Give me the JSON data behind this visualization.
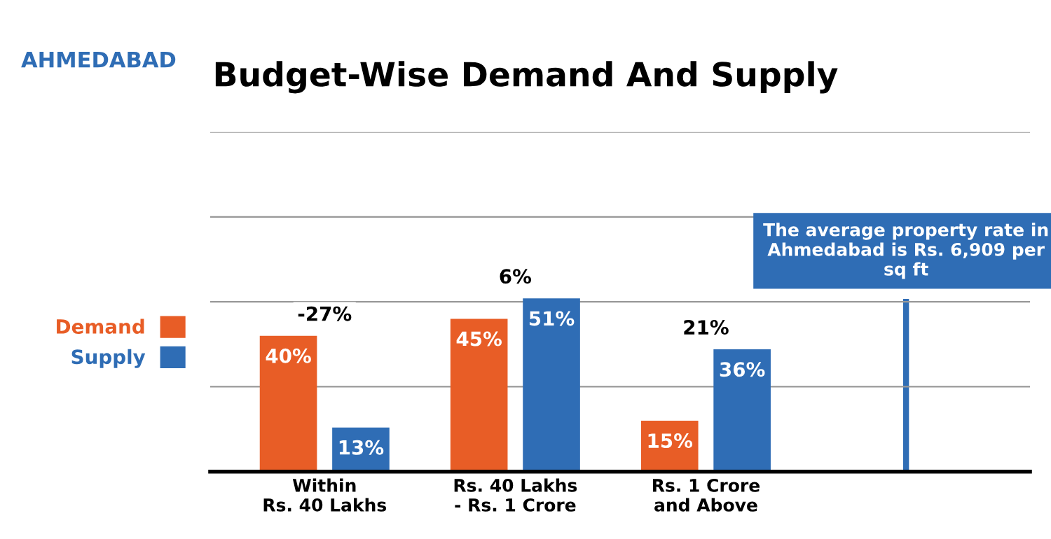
{
  "chart_data": {
    "type": "bar",
    "title": "Budget-Wise Demand And Supply",
    "subtitle": "AHMEDABAD",
    "categories": [
      "Within\nRs. 40 Lakhs",
      "Rs. 40 Lakhs\n- Rs. 1 Crore",
      "Rs. 1 Crore\nand Above"
    ],
    "series": [
      {
        "name": "Demand",
        "color": "#e85d26",
        "values": [
          40,
          45,
          15
        ],
        "value_labels": [
          "40%",
          "45%",
          "15%"
        ]
      },
      {
        "name": "Supply",
        "color": "#2f6db5",
        "values": [
          13,
          51,
          36
        ],
        "value_labels": [
          "13%",
          "51%",
          "36%"
        ]
      }
    ],
    "ylim": [
      0,
      100
    ],
    "yticks": [
      {
        "value": 25,
        "label": null
      },
      {
        "value": 50,
        "label": null
      },
      {
        "value": 75,
        "label": null
      },
      {
        "value": 100,
        "label": null
      }
    ],
    "tick_labels": "x",
    "grid": "y",
    "legend": "left",
    "annotations": [
      "-27%",
      "6%",
      "21%",
      "The average property rate in Ahmedabad is Rs. 6,909 per sq ft"
    ]
  }
}
